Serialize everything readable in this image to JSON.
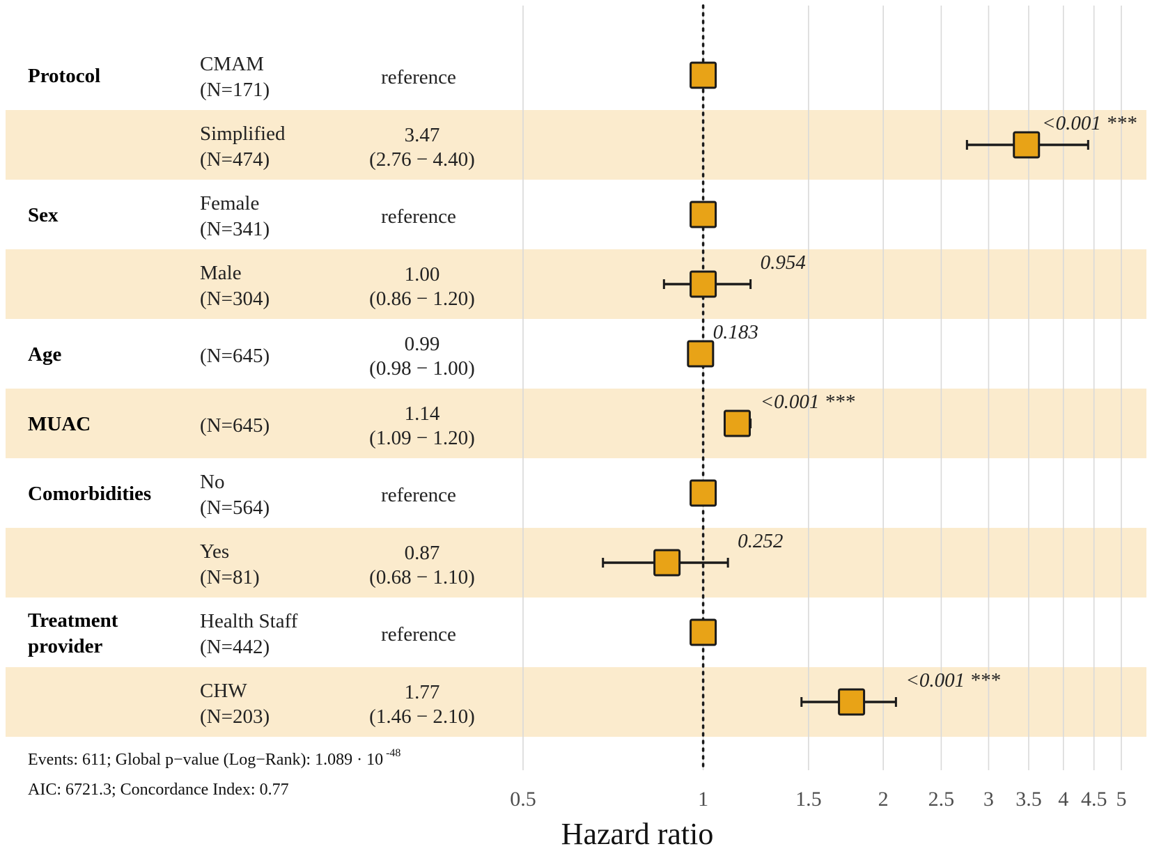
{
  "chart_data": {
    "type": "forest",
    "title": "",
    "xlabel": "Hazard ratio",
    "xscale": "log",
    "xlim": [
      0.5,
      5
    ],
    "reference_line": 1,
    "ticks": [
      {
        "value": 0.5,
        "label": "0.5"
      },
      {
        "value": 1,
        "label": "1"
      },
      {
        "value": 1.5,
        "label": "1.5"
      },
      {
        "value": 2,
        "label": "2"
      },
      {
        "value": 2.5,
        "label": "2.5"
      },
      {
        "value": 3,
        "label": "3"
      },
      {
        "value": 3.5,
        "label": "3.5"
      },
      {
        "value": 4,
        "label": "4"
      },
      {
        "value": 4.5,
        "label": "4.5"
      },
      {
        "value": 5,
        "label": "5"
      }
    ],
    "rows": [
      {
        "variable": "Protocol",
        "level": "CMAM",
        "n": "(N=171)",
        "estimate": "reference",
        "ci": "",
        "hr": 1,
        "lo": null,
        "hi": null,
        "p": "",
        "shaded": false
      },
      {
        "variable": "",
        "level": "Simplified",
        "n": "(N=474)",
        "estimate": "3.47",
        "ci": "(2.76 − 4.40)",
        "hr": 3.47,
        "lo": 2.76,
        "hi": 4.4,
        "p": "<0.001 ***",
        "shaded": true
      },
      {
        "variable": "Sex",
        "level": "Female",
        "n": "(N=341)",
        "estimate": "reference",
        "ci": "",
        "hr": 1,
        "lo": null,
        "hi": null,
        "p": "",
        "shaded": false
      },
      {
        "variable": "",
        "level": "Male",
        "n": "(N=304)",
        "estimate": "1.00",
        "ci": "(0.86 − 1.20)",
        "hr": 1.0,
        "lo": 0.86,
        "hi": 1.2,
        "p": "0.954",
        "shaded": true
      },
      {
        "variable": "Age",
        "level": "",
        "n": "(N=645)",
        "estimate": "0.99",
        "ci": "(0.98 − 1.00)",
        "hr": 0.99,
        "lo": 0.98,
        "hi": 1.0,
        "p": "0.183",
        "shaded": false
      },
      {
        "variable": "MUAC",
        "level": "",
        "n": "(N=645)",
        "estimate": "1.14",
        "ci": "(1.09 − 1.20)",
        "hr": 1.14,
        "lo": 1.09,
        "hi": 1.2,
        "p": "<0.001 ***",
        "shaded": true
      },
      {
        "variable": "Comorbidities",
        "level": "No",
        "n": "(N=564)",
        "estimate": "reference",
        "ci": "",
        "hr": 1,
        "lo": null,
        "hi": null,
        "p": "",
        "shaded": false
      },
      {
        "variable": "",
        "level": "Yes",
        "n": "(N=81)",
        "estimate": "0.87",
        "ci": "(0.68 − 1.10)",
        "hr": 0.87,
        "lo": 0.68,
        "hi": 1.1,
        "p": "0.252",
        "shaded": true
      },
      {
        "variable": "Treatment provider",
        "level": "Health Staff",
        "n": "(N=442)",
        "estimate": "reference",
        "ci": "",
        "hr": 1,
        "lo": null,
        "hi": null,
        "p": "",
        "shaded": false
      },
      {
        "variable": "",
        "level": "CHW",
        "n": "(N=203)",
        "estimate": "1.77",
        "ci": "(1.46 − 2.10)",
        "hr": 1.77,
        "lo": 1.46,
        "hi": 2.1,
        "p": "<0.001 ***",
        "shaded": true
      }
    ],
    "footnote": {
      "line1_prefix": "Events: 611; Global p−value (Log−Rank): 1.089 · 10",
      "line1_exponent": "-48",
      "line2": "AIC: 6721.3; Concordance Index: 0.77"
    }
  },
  "colors": {
    "shade": "#fbebcd",
    "marker_fill": "#e8a317",
    "marker_stroke": "#1a1a1a",
    "grid": "#d9d9d9",
    "reference_line": "#1a1a1a"
  }
}
